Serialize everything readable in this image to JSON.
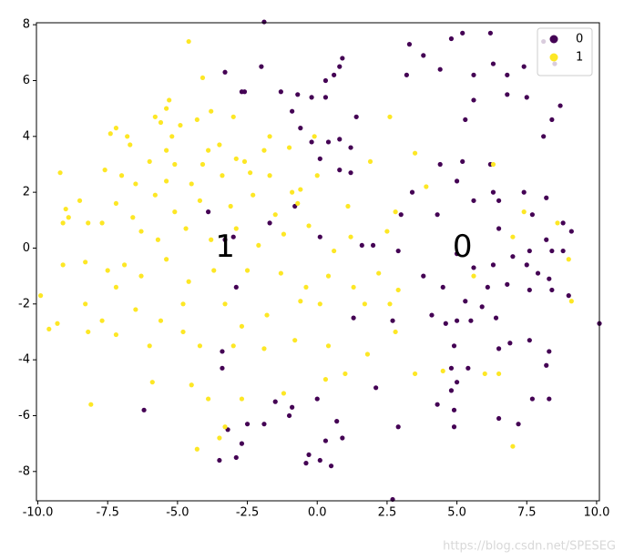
{
  "chart_data": {
    "type": "scatter",
    "xlim": [
      -10.05,
      10.1
    ],
    "ylim": [
      -9.05,
      8.07
    ],
    "xticks": [
      {
        "value": -10,
        "label": "-10.0"
      },
      -7.5,
      {
        "value": -5,
        "label": "-5.0"
      },
      -2.5,
      {
        "value": 0,
        "label": "0.0"
      },
      2.5,
      {
        "value": 5,
        "label": "5.0"
      },
      7.5,
      {
        "value": 10,
        "label": "10.0"
      }
    ],
    "yticks": [
      -8,
      -6,
      -4,
      -2,
      0,
      2,
      4,
      6,
      8
    ],
    "legend": "upper right",
    "annotations": [
      {
        "text": "1",
        "x": -3.3,
        "y": 0
      },
      {
        "text": "0",
        "x": 5.2,
        "y": 0
      }
    ],
    "series": [
      {
        "name": "0",
        "color": "#440154",
        "x": [
          5.2,
          4.8,
          6.2,
          3.3,
          3.8,
          4.4,
          3.2,
          5.6,
          6.3,
          6.8,
          7.4,
          8.1,
          8.5,
          5.6,
          5.3,
          6.8,
          7.5,
          8.7,
          8.1,
          8.4,
          0.9,
          0.8,
          0.6,
          0.3,
          -0.2,
          -0.7,
          0.3,
          -2.6,
          -2.0,
          -3.3,
          -2.7,
          -1.3,
          -0.9,
          -0.6,
          0.8,
          1.4,
          0.4,
          -0.2,
          0.1,
          1.2,
          0.8,
          1.2,
          3.4,
          3.0,
          4.3,
          4.4,
          5.0,
          5.2,
          5.6,
          6.3,
          6.5,
          6.5,
          7.4,
          8.2,
          7.7,
          8.8,
          9.1,
          8.2,
          7.6,
          7.9,
          8.4,
          8.8,
          7.5,
          8.3,
          8.4,
          9.0,
          5.0,
          5.6,
          6.3,
          7.0,
          7.6,
          6.8,
          6.1,
          6.4,
          5.0,
          4.6,
          4.1,
          5.3,
          5.9,
          5.5,
          4.5,
          3.8,
          2.9,
          2.0,
          1.6,
          0.1,
          -0.8,
          -1.7,
          -3.0,
          -3.3,
          -3.9,
          -2.9,
          4.9,
          5.4,
          4.8,
          6.5,
          6.9,
          7.6,
          8.3,
          8.2,
          7.7,
          8.3,
          7.2,
          6.5,
          4.8,
          5.0,
          4.9,
          4.9,
          4.3,
          2.1,
          2.9,
          0.7,
          0.9,
          0.0,
          -0.9,
          -1.0,
          -1.5,
          -1.9,
          -2.5,
          -2.7,
          -3.2,
          -2.9,
          -3.5,
          -3.4,
          -3.4,
          -0.3,
          0.1,
          0.3,
          0.5,
          -0.4,
          1.3,
          2.7,
          2.7,
          -6.2,
          -1.9,
          10.1,
          6.2
        ],
        "y": [
          7.7,
          7.5,
          7.7,
          7.3,
          6.9,
          6.4,
          6.2,
          6.2,
          6.6,
          6.2,
          6.5,
          7.4,
          6.6,
          5.3,
          4.6,
          5.5,
          5.4,
          5.1,
          4.0,
          4.6,
          6.8,
          6.5,
          6.2,
          6.0,
          5.4,
          5.5,
          5.4,
          5.6,
          6.5,
          6.3,
          5.6,
          5.6,
          4.9,
          4.3,
          3.9,
          4.7,
          3.8,
          3.8,
          3.2,
          3.6,
          2.8,
          2.7,
          2.0,
          1.2,
          1.2,
          3.0,
          2.4,
          3.1,
          1.7,
          2.0,
          1.7,
          0.7,
          2.0,
          1.8,
          1.2,
          0.9,
          0.6,
          0.3,
          -0.1,
          -0.9,
          -0.1,
          -0.1,
          -0.6,
          -1.1,
          -1.5,
          -1.7,
          -0.2,
          -0.7,
          -0.6,
          -0.3,
          -1.5,
          -1.3,
          -1.4,
          -2.5,
          -2.6,
          -2.7,
          -2.4,
          -1.9,
          -2.1,
          -2.6,
          -1.4,
          -1.0,
          -0.1,
          0.1,
          0.1,
          0.4,
          1.5,
          0.9,
          0.4,
          0.3,
          1.3,
          -1.4,
          -3.5,
          -4.3,
          -4.3,
          -3.6,
          -3.4,
          -3.3,
          -3.7,
          -4.2,
          -5.4,
          -5.4,
          -6.3,
          -6.1,
          -5.1,
          -4.8,
          -5.8,
          -6.4,
          -5.6,
          -5.0,
          -6.4,
          -6.2,
          -6.8,
          -5.4,
          -5.7,
          -6.0,
          -5.5,
          -6.3,
          -6.3,
          -7.0,
          -6.5,
          -7.5,
          -7.6,
          -4.3,
          -3.7,
          -7.4,
          -7.6,
          -6.9,
          -7.8,
          -7.7,
          -2.5,
          -2.6,
          -9.0,
          -5.8,
          8.1,
          -2.7,
          3.0
        ]
      },
      {
        "name": "1",
        "color": "#fde725",
        "x": [
          -4.6,
          -4.1,
          -3.0,
          -4.3,
          -3.8,
          -5.3,
          -5.4,
          -5.8,
          -5.6,
          -4.9,
          -5.2,
          -6.8,
          -7.4,
          -7.2,
          -6.7,
          -5.4,
          -3.9,
          -3.5,
          -2.9,
          -1.7,
          -1.0,
          -0.1,
          -1.9,
          -2.6,
          -4.1,
          -6.0,
          -5.1,
          -7.6,
          -7.0,
          -6.5,
          -5.4,
          -4.5,
          -3.4,
          -2.4,
          -1.7,
          -0.9,
          0.0,
          -0.6,
          1.1,
          1.9,
          2.6,
          3.5,
          3.9,
          2.8,
          -8.5,
          -9.2,
          -9.0,
          -8.9,
          -9.1,
          -7.7,
          -8.2,
          -7.2,
          -6.6,
          -5.8,
          -5.1,
          -4.2,
          -3.1,
          -2.3,
          -1.5,
          -0.7,
          -6.3,
          -5.7,
          -4.7,
          -3.8,
          -2.9,
          -2.1,
          -1.2,
          -0.3,
          0.6,
          1.2,
          2.5,
          -9.1,
          -8.3,
          -7.5,
          -6.9,
          -6.3,
          -5.4,
          -4.6,
          -3.7,
          -2.5,
          -1.3,
          -0.4,
          0.4,
          1.3,
          2.2,
          2.9,
          -9.9,
          -9.6,
          -9.3,
          -8.3,
          -7.7,
          -7.2,
          -6.5,
          -5.6,
          -4.8,
          -3.3,
          -2.7,
          -1.8,
          -0.6,
          0.1,
          1.7,
          2.6,
          -8.2,
          -7.2,
          -6.0,
          -4.8,
          -4.2,
          -3.0,
          -1.9,
          -0.8,
          0.4,
          1.8,
          2.8,
          3.5,
          -5.9,
          -4.5,
          -3.9,
          -2.7,
          -1.2,
          0.3,
          1.0,
          -8.1,
          -4.3,
          -3.3,
          -3.5,
          4.5,
          6.0,
          6.5,
          7.0,
          5.6,
          6.3,
          7.4,
          8.6,
          7.0,
          9.1,
          9.0
        ],
        "y": [
          7.4,
          6.1,
          4.7,
          4.6,
          4.9,
          5.3,
          5.0,
          4.7,
          4.5,
          4.4,
          4.0,
          4.0,
          4.1,
          4.3,
          3.7,
          3.5,
          3.5,
          3.7,
          3.2,
          4.0,
          3.6,
          4.0,
          3.5,
          3.1,
          3.0,
          3.1,
          3.0,
          2.8,
          2.6,
          2.3,
          2.4,
          2.3,
          2.6,
          2.7,
          2.6,
          2.0,
          2.6,
          2.1,
          1.5,
          3.1,
          4.7,
          3.4,
          2.2,
          1.3,
          1.7,
          2.7,
          1.4,
          1.1,
          0.9,
          0.9,
          0.9,
          1.6,
          1.1,
          1.9,
          1.3,
          1.7,
          1.5,
          1.9,
          1.2,
          1.6,
          0.6,
          0.3,
          0.7,
          0.3,
          0.7,
          0.1,
          0.5,
          0.8,
          -0.1,
          0.4,
          0.6,
          -0.6,
          -0.5,
          -0.8,
          -0.6,
          -1.0,
          -0.4,
          -1.2,
          -0.8,
          -0.8,
          -0.9,
          -1.4,
          -1.0,
          -1.4,
          -0.9,
          -1.5,
          -1.7,
          -2.9,
          -2.7,
          -2.0,
          -2.6,
          -1.4,
          -2.2,
          -2.6,
          -2.0,
          -2.0,
          -2.8,
          -2.4,
          -1.9,
          -2.0,
          -2.0,
          -2.0,
          -3.0,
          -3.1,
          -3.5,
          -3.0,
          -3.5,
          -3.5,
          -3.6,
          -3.3,
          -3.5,
          -3.8,
          -3.0,
          -4.5,
          -4.8,
          -4.9,
          -5.4,
          -5.4,
          -5.2,
          -4.7,
          -4.5,
          -5.6,
          -7.2,
          -6.4,
          -6.8,
          -4.4,
          -4.5,
          -4.5,
          -7.1,
          -1.0,
          3.0,
          1.3,
          0.9,
          0.4,
          -1.9,
          -0.4
        ]
      }
    ]
  }
}
